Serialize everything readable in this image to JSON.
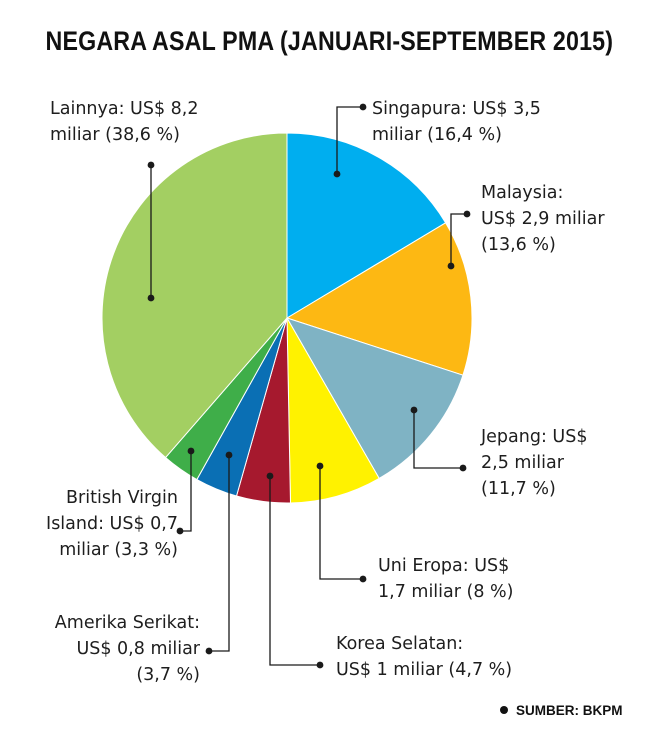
{
  "title": "NEGARA ASAL PMA (JANUARI-SEPTEMBER 2015)",
  "source": "SUMBER: BKPM",
  "chart_data": {
    "type": "pie",
    "title": "NEGARA ASAL PMA (JANUARI-SEPTEMBER 2015)",
    "unit": "US$ miliar",
    "start": "top, clockwise",
    "slices": [
      {
        "name": "Singapura",
        "value": 3.5,
        "percent": 16.4,
        "color": "#00aeef",
        "label_lines": [
          "Singapura:  US$ 3,5",
          "miliar (16,4 %)"
        ]
      },
      {
        "name": "Malaysia",
        "value": 2.9,
        "percent": 13.6,
        "color": "#fdb813",
        "label_lines": [
          "Malaysia:",
          "US$ 2,9 miliar",
          "(13,6 %)"
        ]
      },
      {
        "name": "Jepang",
        "value": 2.5,
        "percent": 11.7,
        "color": "#7fb3c4",
        "label_lines": [
          "Jepang: US$",
          "2,5 miliar",
          "(11,7 %)"
        ]
      },
      {
        "name": "Uni Eropa",
        "value": 1.7,
        "percent": 8,
        "color": "#fff200",
        "label_lines": [
          "Uni Eropa: US$",
          "1,7 miliar   (8 %)"
        ]
      },
      {
        "name": "Korea Selatan",
        "value": 1,
        "percent": 4.7,
        "color": "#a6192e",
        "label_lines": [
          "Korea Selatan:",
          "US$ 1 miliar (4,7 %)"
        ]
      },
      {
        "name": "Amerika Serikat",
        "value": 0.8,
        "percent": 3.7,
        "color": "#0a6fb4",
        "label_lines": [
          "Amerika Serikat:",
          "US$ 0,8 miliar",
          "(3,7 %)"
        ]
      },
      {
        "name": "British Virgin Island",
        "value": 0.7,
        "percent": 3.3,
        "color": "#3fae49",
        "label_lines": [
          "British Virgin",
          "Island: US$ 0,7",
          "miliar (3,3 %)"
        ]
      },
      {
        "name": "Lainnya",
        "value": 8.2,
        "percent": 38.6,
        "color": "#a3cf62",
        "label_lines": [
          "Lainnya: US$ 8,2",
          "miliar (38,6 %)"
        ]
      }
    ]
  }
}
